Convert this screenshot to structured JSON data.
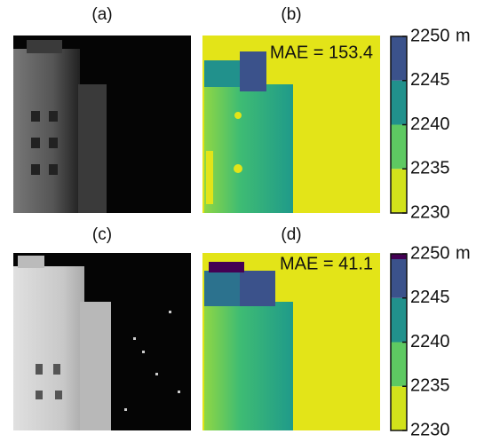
{
  "panels": [
    {
      "label": "(a)"
    },
    {
      "label": "(b)",
      "annotation": "MAE = 153.4"
    },
    {
      "label": "(c)"
    },
    {
      "label": "(d)",
      "annotation": "MAE = 41.1"
    }
  ],
  "colorbars": [
    {
      "lim": [
        2230,
        2250
      ],
      "ticks": [
        2250,
        2245,
        2240,
        2235,
        2230
      ],
      "unit": "m"
    },
    {
      "lim": [
        2230,
        2250
      ],
      "ticks": [
        2250,
        2245,
        2240,
        2235,
        2230
      ],
      "unit": "m"
    }
  ]
}
